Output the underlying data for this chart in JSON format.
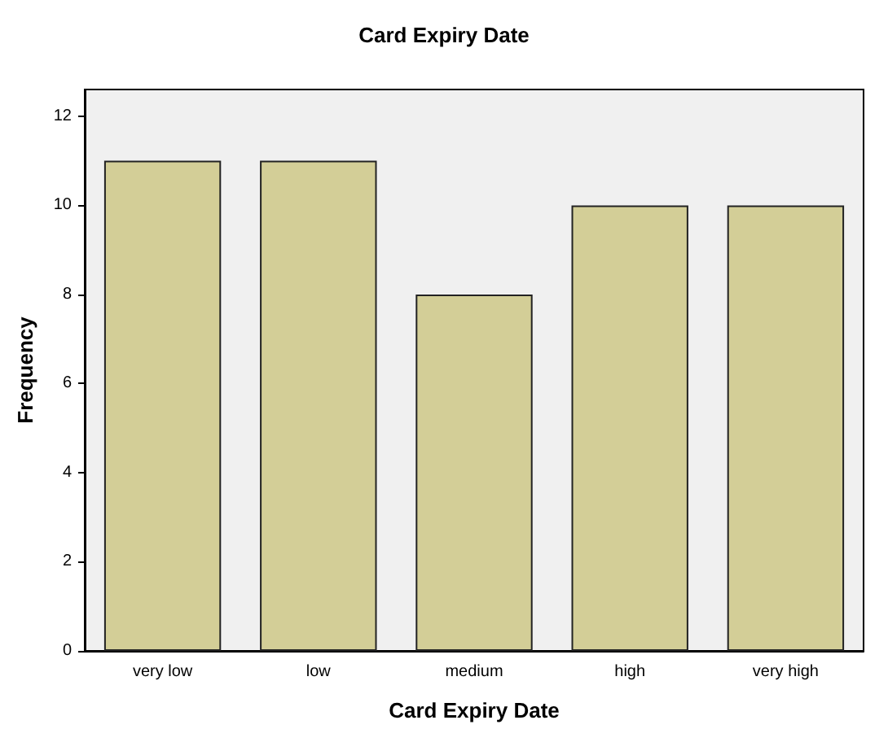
{
  "chart_data": {
    "type": "bar",
    "title": "Card Expiry Date",
    "xlabel": "Card Expiry Date",
    "ylabel": "Frequency",
    "categories": [
      "very low",
      "low",
      "medium",
      "high",
      "very high"
    ],
    "values": [
      11,
      11,
      8,
      10,
      10
    ],
    "color": "#d3ce97",
    "ylim": [
      0,
      12.6
    ],
    "yticks": [
      0,
      2,
      4,
      6,
      8,
      10,
      12
    ]
  }
}
